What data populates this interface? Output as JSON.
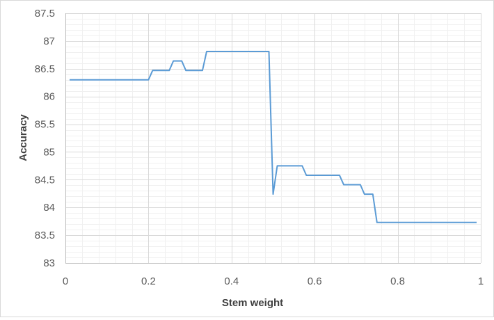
{
  "chart_data": {
    "type": "line",
    "title": "",
    "xlabel": "Stem weight",
    "ylabel": "Accuracy",
    "xlim": [
      0,
      1
    ],
    "ylim": [
      83,
      87.5
    ],
    "x_ticks": [
      0,
      0.2,
      0.4,
      0.6,
      0.8,
      1
    ],
    "x_tick_labels": [
      "0",
      "0.2",
      "0.4",
      "0.6",
      "0.8",
      "1"
    ],
    "y_ticks": [
      83,
      83.5,
      84,
      84.5,
      85,
      85.5,
      86,
      86.5,
      87,
      87.5
    ],
    "y_tick_labels": [
      "83",
      "83.5",
      "84",
      "84.5",
      "85",
      "85.5",
      "86",
      "86.5",
      "87",
      "87.5"
    ],
    "grid": true,
    "legend": "none",
    "series": [
      {
        "color": "#5b9bd5",
        "x": [
          0.01,
          0.2,
          0.21,
          0.25,
          0.26,
          0.28,
          0.29,
          0.33,
          0.34,
          0.49,
          0.5,
          0.51,
          0.57,
          0.58,
          0.66,
          0.67,
          0.71,
          0.72,
          0.74,
          0.75,
          0.99
        ],
        "y": [
          86.3,
          86.3,
          86.47,
          86.47,
          86.64,
          86.64,
          86.47,
          86.47,
          86.81,
          86.81,
          84.24,
          84.75,
          84.75,
          84.58,
          84.58,
          84.41,
          84.41,
          84.24,
          84.24,
          83.73,
          83.73
        ]
      }
    ]
  }
}
